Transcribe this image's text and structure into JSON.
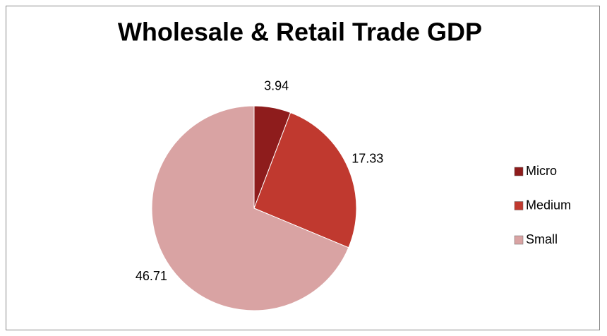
{
  "chart_data": {
    "type": "pie",
    "title": "Wholesale & Retail Trade GDP",
    "categories": [
      "Micro",
      "Medium",
      "Small"
    ],
    "values": [
      3.94,
      17.33,
      46.71
    ],
    "colors": [
      "#8e1c1c",
      "#c0392f",
      "#d9a3a3"
    ],
    "legend": "right"
  }
}
